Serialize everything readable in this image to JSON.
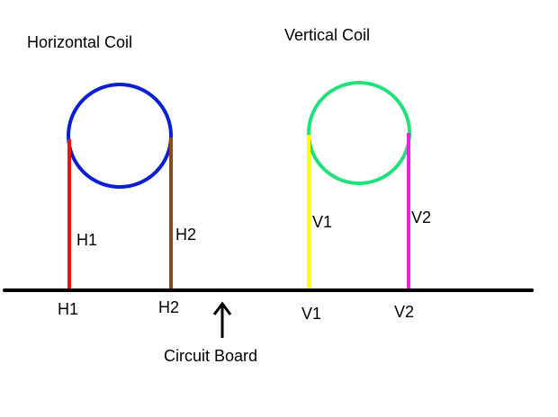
{
  "coils": [
    {
      "label": "Horizontal Coil",
      "leads": [
        "H1",
        "H2"
      ]
    },
    {
      "label": "Vertical Coil",
      "leads": [
        "V1",
        "V2"
      ]
    }
  ],
  "board": {
    "label": "Circuit Board",
    "pins": [
      "H1",
      "H2",
      "V1",
      "V2"
    ]
  }
}
